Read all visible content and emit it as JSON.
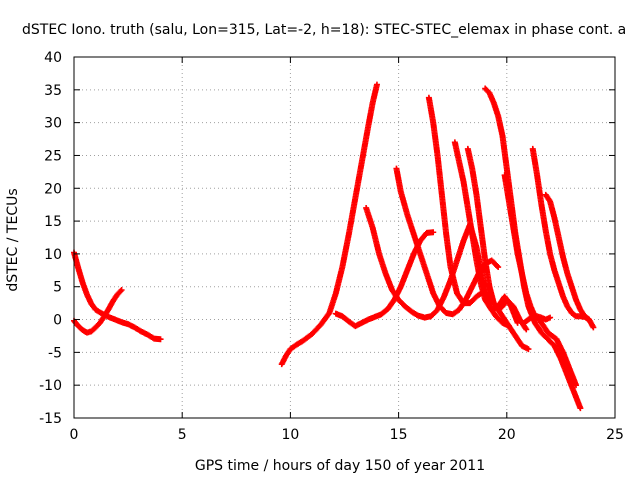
{
  "chart_data": {
    "type": "scatter",
    "title": "dSTEC Iono. truth (salu, Lon=315, Lat=-2, h=18): STEC-STEC_elemax in phase cont. a",
    "xlabel": "GPS time / hours of day 150 of year 2011",
    "ylabel": "dSTEC  / TECUs",
    "xlim": [
      0,
      25
    ],
    "ylim": [
      -15,
      40
    ],
    "xticks": [
      0,
      5,
      10,
      15,
      20,
      25
    ],
    "yticks": [
      -15,
      -10,
      -5,
      0,
      5,
      10,
      15,
      20,
      25,
      30,
      35,
      40
    ],
    "grid": true,
    "marker": "+",
    "color": "#ff0000",
    "series": [
      {
        "x": [
          0.0,
          0.2,
          0.4,
          0.6,
          0.8,
          1.0,
          1.3,
          1.6,
          1.9,
          2.2,
          2.5,
          2.8,
          3.1,
          3.4,
          3.7,
          4.0
        ],
        "y": [
          10.2,
          7.8,
          5.6,
          3.8,
          2.4,
          1.5,
          0.9,
          0.4,
          0.0,
          -0.4,
          -0.7,
          -1.2,
          -1.8,
          -2.3,
          -2.9,
          -3.0
        ]
      },
      {
        "x": [
          0.0,
          0.2,
          0.4,
          0.6,
          0.8,
          1.0,
          1.2,
          1.4,
          1.6,
          1.8,
          2.0,
          2.2
        ],
        "y": [
          -0.2,
          -1.0,
          -1.6,
          -2.0,
          -1.8,
          -1.2,
          -0.5,
          0.5,
          1.6,
          2.8,
          3.8,
          4.5
        ]
      },
      {
        "x": [
          9.6,
          9.8,
          10.0,
          10.3,
          10.6,
          11.0,
          11.4,
          11.8,
          12.1,
          12.4,
          12.7,
          13.0,
          13.3,
          13.6,
          13.8,
          14.0
        ],
        "y": [
          -6.8,
          -5.5,
          -4.5,
          -3.8,
          -3.2,
          -2.2,
          -0.8,
          1.0,
          4.0,
          8.0,
          13.0,
          18.5,
          24.0,
          29.5,
          33.0,
          35.8
        ]
      },
      {
        "x": [
          12.1,
          12.4,
          12.7,
          13.0,
          13.3,
          13.6,
          13.9,
          14.2,
          14.5,
          14.8,
          15.1,
          15.4,
          15.7,
          16.0,
          16.3,
          16.6
        ],
        "y": [
          0.9,
          0.5,
          -0.3,
          -1.0,
          -0.5,
          0.0,
          0.4,
          0.8,
          1.6,
          3.0,
          5.0,
          7.5,
          10.0,
          12.0,
          13.2,
          13.3
        ]
      },
      {
        "x": [
          13.5,
          13.8,
          14.1,
          14.4,
          14.7,
          15.0,
          15.3,
          15.6,
          15.9,
          16.2,
          16.5,
          16.8,
          17.1,
          17.4,
          17.7,
          18.0,
          18.3,
          18.6,
          18.9,
          19.2,
          19.5,
          19.8,
          20.1
        ],
        "y": [
          17.0,
          14.0,
          10.0,
          7.0,
          4.5,
          3.0,
          2.0,
          1.2,
          0.6,
          0.3,
          0.5,
          1.5,
          3.5,
          6.0,
          9.0,
          12.0,
          14.5,
          11.0,
          6.0,
          2.0,
          0.5,
          -0.5,
          -1.0
        ]
      },
      {
        "x": [
          14.9,
          15.1,
          15.4,
          15.7,
          16.0,
          16.3,
          16.6,
          16.9,
          17.2,
          17.5,
          17.8,
          18.1,
          18.4,
          18.7,
          19.0,
          19.3,
          19.6
        ],
        "y": [
          23.0,
          19.5,
          16.0,
          13.0,
          10.0,
          7.0,
          4.0,
          2.0,
          1.0,
          0.8,
          1.5,
          3.0,
          5.0,
          7.0,
          8.5,
          9.0,
          8.0
        ]
      },
      {
        "x": [
          16.4,
          16.6,
          16.8,
          17.0,
          17.2,
          17.4,
          17.7,
          18.0,
          18.3,
          18.6,
          18.9,
          19.2,
          19.5,
          19.8,
          20.1,
          20.4,
          20.7,
          21.0
        ],
        "y": [
          33.8,
          30.0,
          25.0,
          19.0,
          13.0,
          8.0,
          4.0,
          2.5,
          2.5,
          3.5,
          4.2,
          3.5,
          2.0,
          0.5,
          -1.0,
          -2.5,
          -4.0,
          -4.5
        ]
      },
      {
        "x": [
          17.6,
          17.8,
          18.0,
          18.2,
          18.4,
          18.6,
          18.8,
          19.0,
          19.3,
          19.6,
          19.9,
          20.2,
          20.5
        ],
        "y": [
          27.0,
          24.0,
          21.0,
          17.0,
          13.0,
          9.0,
          5.5,
          3.0,
          1.5,
          2.0,
          3.5,
          2.0,
          -0.5
        ]
      },
      {
        "x": [
          18.2,
          18.4,
          18.6,
          18.8,
          19.0,
          19.2,
          19.4,
          19.6,
          19.8,
          20.0,
          20.3,
          20.6,
          20.9
        ],
        "y": [
          26.0,
          23.0,
          19.0,
          14.0,
          9.0,
          5.0,
          2.5,
          1.5,
          2.0,
          3.0,
          2.0,
          0.0,
          -1.5
        ]
      },
      {
        "x": [
          19.0,
          19.2,
          19.4,
          19.6,
          19.8,
          20.0,
          20.2,
          20.4,
          20.6,
          20.8,
          21.0,
          21.3,
          21.6,
          21.9,
          22.2,
          22.5,
          22.8,
          23.1,
          23.4
        ],
        "y": [
          35.2,
          34.5,
          33.0,
          31.0,
          28.0,
          23.0,
          18.0,
          13.0,
          9.0,
          5.0,
          2.0,
          -0.5,
          -2.0,
          -3.0,
          -4.0,
          -6.0,
          -8.5,
          -11.0,
          -13.5
        ]
      },
      {
        "x": [
          19.9,
          20.1,
          20.3,
          20.5,
          20.7,
          20.9,
          21.1,
          21.3,
          21.5,
          21.7,
          21.9,
          22.1,
          22.3,
          22.6,
          22.9,
          23.2
        ],
        "y": [
          22.0,
          18.0,
          14.0,
          10.0,
          7.0,
          4.0,
          2.0,
          0.5,
          0.0,
          -1.0,
          -2.0,
          -2.5,
          -3.0,
          -5.0,
          -7.5,
          -10.0
        ]
      },
      {
        "x": [
          21.2,
          21.4,
          21.6,
          21.8,
          22.0,
          22.2,
          22.4,
          22.6,
          22.8,
          23.0,
          23.2,
          23.4,
          23.6,
          23.8,
          24.0
        ],
        "y": [
          26.0,
          22.0,
          17.5,
          13.5,
          10.0,
          7.5,
          5.5,
          3.5,
          2.0,
          1.0,
          0.5,
          0.5,
          0.4,
          0.0,
          -1.2
        ]
      },
      {
        "x": [
          21.8,
          22.0,
          22.2,
          22.4,
          22.6,
          22.8,
          23.0,
          23.2,
          23.4,
          23.6,
          23.8
        ],
        "y": [
          19.0,
          18.0,
          15.5,
          12.5,
          9.5,
          7.0,
          5.0,
          3.0,
          1.5,
          0.5,
          0.0
        ]
      },
      {
        "x": [
          20.8,
          21.0,
          21.2,
          21.4,
          21.6,
          21.8,
          22.0
        ],
        "y": [
          -0.5,
          0.0,
          0.5,
          0.5,
          0.3,
          0.0,
          0.3
        ]
      }
    ]
  }
}
